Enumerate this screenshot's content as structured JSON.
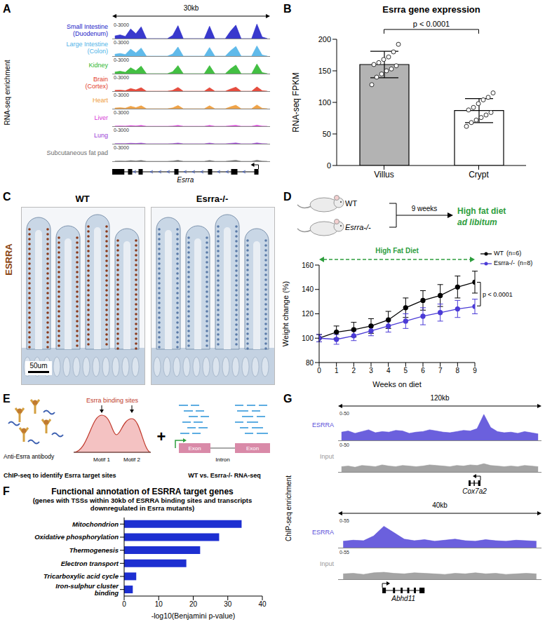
{
  "chart_data": [
    {
      "panel": "A",
      "type": "tracks",
      "y_label": "RNA-seq enrichment",
      "span_label": "30kb",
      "range_label": "0-3000",
      "tick_labels": false,
      "xlim": [
        0,
        30
      ],
      "ylim": [
        0,
        3000
      ],
      "x": [
        0.5,
        1.5,
        2.5,
        3.5,
        4.5,
        5.5,
        6.5,
        7.5,
        8.5,
        9.5,
        10.5,
        11.5,
        12.5,
        13.5,
        14.5,
        15.5,
        16.5,
        17.5,
        18.5,
        19.5,
        20.5,
        21.5,
        22.5,
        23.5,
        24.5,
        25.5,
        26.5,
        27.5,
        28.5,
        29.5
      ],
      "series": [
        {
          "name": "Small Intestine (Duodenum)",
          "color": "#2323c8",
          "values": [
            500,
            700,
            400,
            1800,
            900,
            2200,
            0,
            0,
            0,
            0,
            0,
            600,
            2400,
            0,
            0,
            0,
            0,
            0,
            2300,
            0,
            0,
            0,
            1400,
            2500,
            0,
            0,
            0,
            2700,
            300,
            0
          ]
        },
        {
          "name": "Large Intestine (Colon)",
          "color": "#4fb3e8",
          "values": [
            350,
            500,
            300,
            1300,
            600,
            1500,
            0,
            0,
            0,
            0,
            0,
            400,
            1700,
            0,
            0,
            0,
            0,
            0,
            1600,
            0,
            0,
            0,
            1000,
            1800,
            0,
            0,
            0,
            1900,
            200,
            0
          ]
        },
        {
          "name": "Kidney",
          "color": "#2fb82f",
          "values": [
            300,
            450,
            250,
            1100,
            550,
            1400,
            0,
            0,
            0,
            0,
            0,
            350,
            1500,
            0,
            0,
            0,
            0,
            0,
            1500,
            0,
            0,
            0,
            900,
            1600,
            0,
            0,
            0,
            1800,
            200,
            0
          ]
        },
        {
          "name": "Brain (Cortex)",
          "color": "#e23a2a",
          "values": [
            150,
            200,
            100,
            500,
            250,
            650,
            0,
            0,
            0,
            0,
            0,
            150,
            700,
            0,
            0,
            0,
            0,
            0,
            650,
            0,
            0,
            0,
            400,
            750,
            0,
            0,
            0,
            800,
            100,
            0
          ]
        },
        {
          "name": "Heart",
          "color": "#ee9a35",
          "values": [
            120,
            180,
            100,
            450,
            200,
            550,
            0,
            0,
            0,
            0,
            0,
            150,
            600,
            0,
            0,
            0,
            0,
            0,
            550,
            0,
            0,
            0,
            350,
            650,
            0,
            0,
            0,
            700,
            80,
            0
          ]
        },
        {
          "name": "Liver",
          "color": "#d63ad6",
          "values": [
            30,
            50,
            20,
            120,
            60,
            150,
            0,
            0,
            0,
            0,
            0,
            40,
            160,
            0,
            0,
            0,
            0,
            0,
            150,
            0,
            0,
            0,
            100,
            170,
            0,
            0,
            0,
            190,
            20,
            0
          ]
        },
        {
          "name": "Lung",
          "color": "#9b3ad6",
          "values": [
            25,
            40,
            20,
            100,
            50,
            130,
            0,
            0,
            0,
            0,
            0,
            30,
            140,
            0,
            0,
            0,
            0,
            0,
            130,
            0,
            0,
            0,
            80,
            150,
            0,
            0,
            0,
            160,
            20,
            0
          ]
        },
        {
          "name": "Subcutaneous fat pad",
          "color": "#6e6e6e",
          "values": [
            40,
            60,
            30,
            140,
            70,
            170,
            0,
            0,
            0,
            0,
            0,
            50,
            180,
            0,
            0,
            0,
            0,
            0,
            170,
            0,
            0,
            0,
            110,
            190,
            0,
            0,
            0,
            210,
            30,
            0
          ]
        }
      ],
      "gene": {
        "name": "Esrra",
        "strand": "-",
        "exons": [
          [
            0,
            2.3
          ],
          [
            3,
            3.8
          ],
          [
            5,
            5.8
          ],
          [
            11.8,
            12.6
          ],
          [
            18.2,
            19
          ],
          [
            22.6,
            23.8
          ],
          [
            27,
            27.8
          ]
        ]
      }
    },
    {
      "panel": "B",
      "type": "bar",
      "title": "Esrra gene expression",
      "y_label": "RNA-seq FPKM",
      "categories": [
        "Villus",
        "Crypt"
      ],
      "values": [
        160,
        87
      ],
      "error": [
        21,
        19
      ],
      "points": [
        [
          128,
          140,
          145,
          150,
          153,
          158,
          160,
          163,
          168,
          172,
          180,
          192
        ],
        [
          62,
          68,
          72,
          76,
          80,
          84,
          88,
          92,
          98,
          104,
          108,
          115
        ]
      ],
      "colors": [
        "#b3b3b3",
        "#ffffff"
      ],
      "ylim": [
        0,
        200
      ],
      "yticks": [
        0,
        50,
        100,
        150,
        200
      ],
      "annotations": [
        "p < 0.0001"
      ]
    },
    {
      "panel": "D",
      "type": "line",
      "x_label": "Weeks on diet",
      "y_label": "Weight change (%)",
      "x": [
        0,
        1,
        2,
        3,
        4,
        5,
        6,
        7,
        8,
        9
      ],
      "xlim": [
        0,
        9
      ],
      "xticks": [
        0,
        1,
        2,
        3,
        4,
        5,
        6,
        7,
        8,
        9
      ],
      "ylim": [
        80,
        160
      ],
      "yticks": [
        80,
        100,
        120,
        140,
        160
      ],
      "legend": "right",
      "series": [
        {
          "name": "WT",
          "n_label": "(n=6)",
          "color": "#000000",
          "marker": "circle",
          "values": [
            100,
            105,
            107,
            110,
            115,
            125,
            131,
            135,
            142,
            146
          ],
          "error": [
            3,
            5,
            6,
            6,
            7,
            8,
            8,
            9,
            9,
            9
          ]
        },
        {
          "name": "Esrra-/-",
          "n_label": "(n=8)",
          "color": "#4b3bd6",
          "marker": "circle",
          "values": [
            100,
            99,
            102,
            106,
            110,
            114,
            118,
            121,
            124,
            126
          ],
          "error": [
            3,
            4,
            4,
            4,
            5,
            6,
            7,
            7,
            7,
            6
          ]
        }
      ],
      "annotations": [
        "High Fat Diet",
        "p < 0.0001"
      ]
    },
    {
      "panel": "F",
      "type": "bar",
      "orientation": "horizontal",
      "title": "Functional annotation of ESRRA target genes",
      "subtitle": "(genes with TSSs within 30kb of ESRRA binding sites and transcripts downregulated in Esrra mutants)",
      "x_label": "-log10(Benjamini p-value)",
      "categories": [
        "Mitochondrion",
        "Oxidative phosphorylation",
        "Thermogenesis",
        "Electron transport",
        "Tricarboxylic acid cycle",
        "Iron-sulphur cluster binding"
      ],
      "values": [
        34,
        27.5,
        22,
        18,
        3.5,
        2.5
      ],
      "color": "#1d2fd1",
      "xlim": [
        0,
        40
      ],
      "xticks": [
        0,
        10,
        20,
        30,
        40
      ]
    },
    {
      "panel": "G",
      "type": "tracks",
      "y_label": "ChIP-seq enrichment",
      "span_label": "120kb",
      "range_label": "0-50",
      "tick_labels": false,
      "xlim": [
        0,
        120
      ],
      "ylim": [
        0,
        50
      ],
      "x": [
        2,
        6,
        10,
        14,
        18,
        22,
        26,
        30,
        34,
        38,
        42,
        46,
        50,
        54,
        58,
        62,
        66,
        70,
        74,
        78,
        82,
        86,
        90,
        94,
        98,
        102,
        106,
        110,
        114,
        118
      ],
      "series": [
        {
          "name": "ESRRA",
          "color": "#5b4fd9",
          "values": [
            14,
            16,
            12,
            15,
            18,
            13,
            15,
            14,
            17,
            16,
            12,
            14,
            15,
            18,
            16,
            14,
            13,
            15,
            17,
            16,
            20,
            44,
            22,
            15,
            13,
            14,
            12,
            15,
            13,
            11
          ]
        },
        {
          "name": "Input",
          "color": "#9a9a9a",
          "values": [
            9,
            10,
            8,
            11,
            10,
            9,
            12,
            10,
            9,
            11,
            10,
            9,
            10,
            12,
            11,
            10,
            9,
            11,
            10,
            12,
            11,
            14,
            11,
            10,
            9,
            10,
            9,
            11,
            10,
            9
          ]
        }
      ],
      "gene": {
        "name": "Cox7a2",
        "strand": "-",
        "exons": [
          [
            77,
            78.2
          ],
          [
            80,
            80.6
          ],
          [
            82.6,
            84
          ]
        ]
      }
    },
    {
      "type": "tracks",
      "span_label": "40kb",
      "range_label": "0-55",
      "tick_labels": false,
      "xlim": [
        0,
        40
      ],
      "ylim": [
        0,
        55
      ],
      "x": [
        1,
        3,
        5,
        7,
        9,
        11,
        13,
        15,
        17,
        19,
        21,
        23,
        25,
        27,
        29,
        31,
        33,
        35,
        37,
        39
      ],
      "series": [
        {
          "name": "ESRRA",
          "color": "#5b4fd9",
          "values": [
            12,
            14,
            13,
            22,
            40,
            28,
            16,
            13,
            15,
            12,
            14,
            16,
            13,
            12,
            15,
            13,
            12,
            14,
            13,
            12
          ]
        },
        {
          "name": "Input",
          "color": "#9a9a9a",
          "values": [
            10,
            11,
            9,
            12,
            13,
            11,
            10,
            12,
            11,
            10,
            9,
            11,
            10,
            12,
            10,
            11,
            9,
            10,
            11,
            10
          ]
        }
      ],
      "gene": {
        "name": "Abhd11",
        "strand": "+",
        "exons": [
          [
            8.7,
            9.4
          ],
          [
            10.8,
            11.2
          ],
          [
            12.3,
            12.7
          ],
          [
            13.6,
            14
          ],
          [
            14.9,
            15.3
          ],
          [
            16,
            17
          ]
        ]
      }
    }
  ],
  "diagrams": {
    "C": {
      "panel": "C",
      "stain": "ESRRA",
      "images": [
        "WT",
        "Esrra-/-"
      ],
      "scale_bar": "50um"
    },
    "D_scheme": {
      "groups": [
        "WT",
        "Esrra-/-"
      ],
      "duration": "9 weeks",
      "diet": "High fat diet",
      "diet_note": "ad libitum"
    },
    "E": {
      "panel": "E",
      "antibody": "Anti-Esrra antibody",
      "peak": "Esrra binding sites",
      "motifs": [
        "Motif 1",
        "Motif 2"
      ],
      "chip_caption": "ChIP-seq to identify Esrra target sites",
      "plus": "+",
      "gene_parts": [
        "Exon",
        "Intron",
        "Exon"
      ],
      "rna_caption": "WT vs. Esrra-/- RNA-seq"
    }
  }
}
